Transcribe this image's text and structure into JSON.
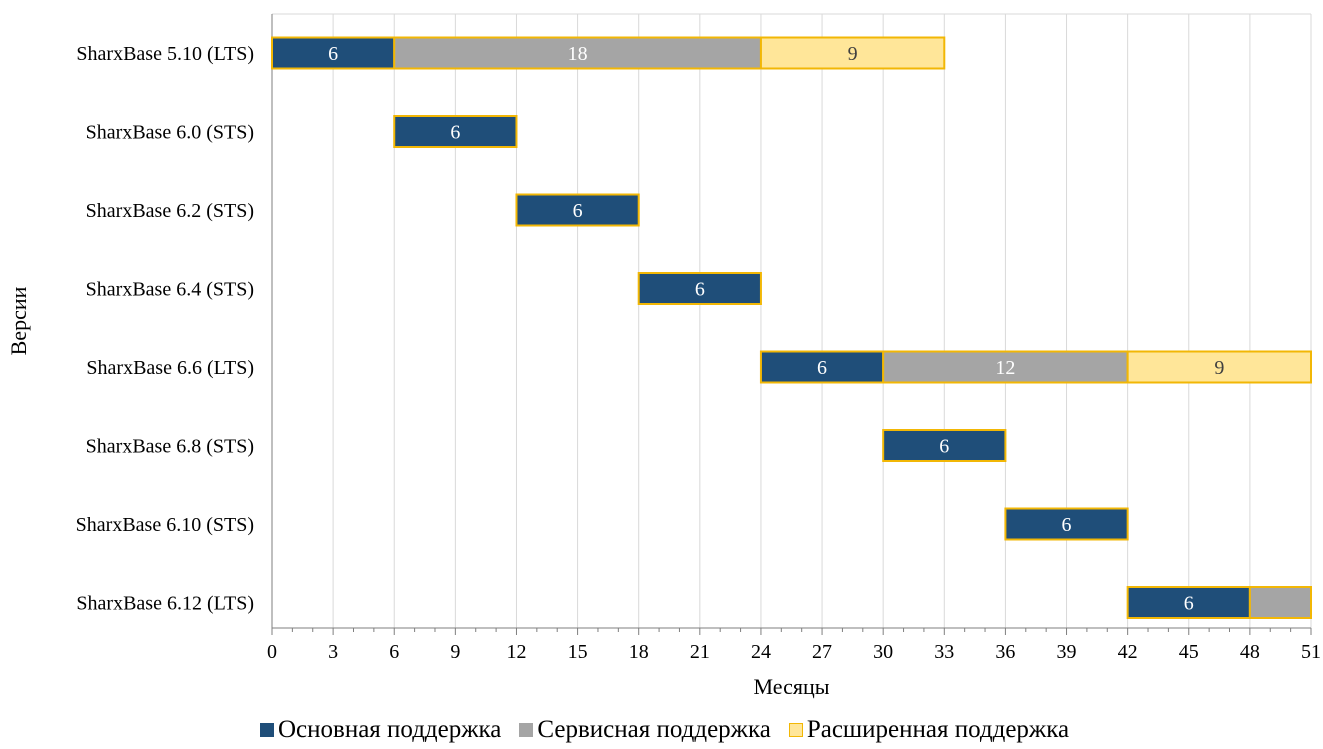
{
  "chart_data": {
    "type": "bar",
    "orientation": "horizontal",
    "stacked": true,
    "xlabel": "Месяцы",
    "ylabel": "Версии",
    "xlim": [
      0,
      51
    ],
    "x_ticks": [
      "0",
      "3",
      "6",
      "9",
      "12",
      "15",
      "18",
      "21",
      "24",
      "27",
      "30",
      "33",
      "36",
      "39",
      "42",
      "45",
      "48",
      "51"
    ],
    "grid": "vertical",
    "legend_position": "bottom",
    "categories": [
      "SharxBase 5.10 (LTS)",
      "SharxBase 6.0 (STS)",
      "SharxBase 6.2 (STS)",
      "SharxBase 6.4 (STS)",
      "SharxBase 6.6 (LTS)",
      "SharxBase 6.8 (STS)",
      "SharxBase 6.10 (STS)",
      "SharxBase 6.12 (LTS)"
    ],
    "offsets": [
      0,
      6,
      12,
      18,
      24,
      30,
      36,
      42
    ],
    "series": [
      {
        "name": "Основная поддержка",
        "color": "#1f4e79",
        "values": [
          6,
          6,
          6,
          6,
          6,
          6,
          6,
          6
        ],
        "labels": [
          "6",
          "6",
          "6",
          "6",
          "6",
          "6",
          "6",
          "6"
        ]
      },
      {
        "name": "Сервисная поддержка",
        "color": "#a5a5a5",
        "values": [
          18,
          0,
          0,
          0,
          12,
          0,
          0,
          3
        ],
        "labels": [
          "18",
          "",
          "",
          "",
          "12",
          "",
          "",
          ""
        ]
      },
      {
        "name": "Расширенная поддержка",
        "color": "#ffe699",
        "values": [
          9,
          0,
          0,
          0,
          9,
          0,
          0,
          0
        ],
        "labels": [
          "9",
          "",
          "",
          "",
          "9",
          "",
          "",
          ""
        ]
      }
    ],
    "border_color": "#f2b705"
  }
}
